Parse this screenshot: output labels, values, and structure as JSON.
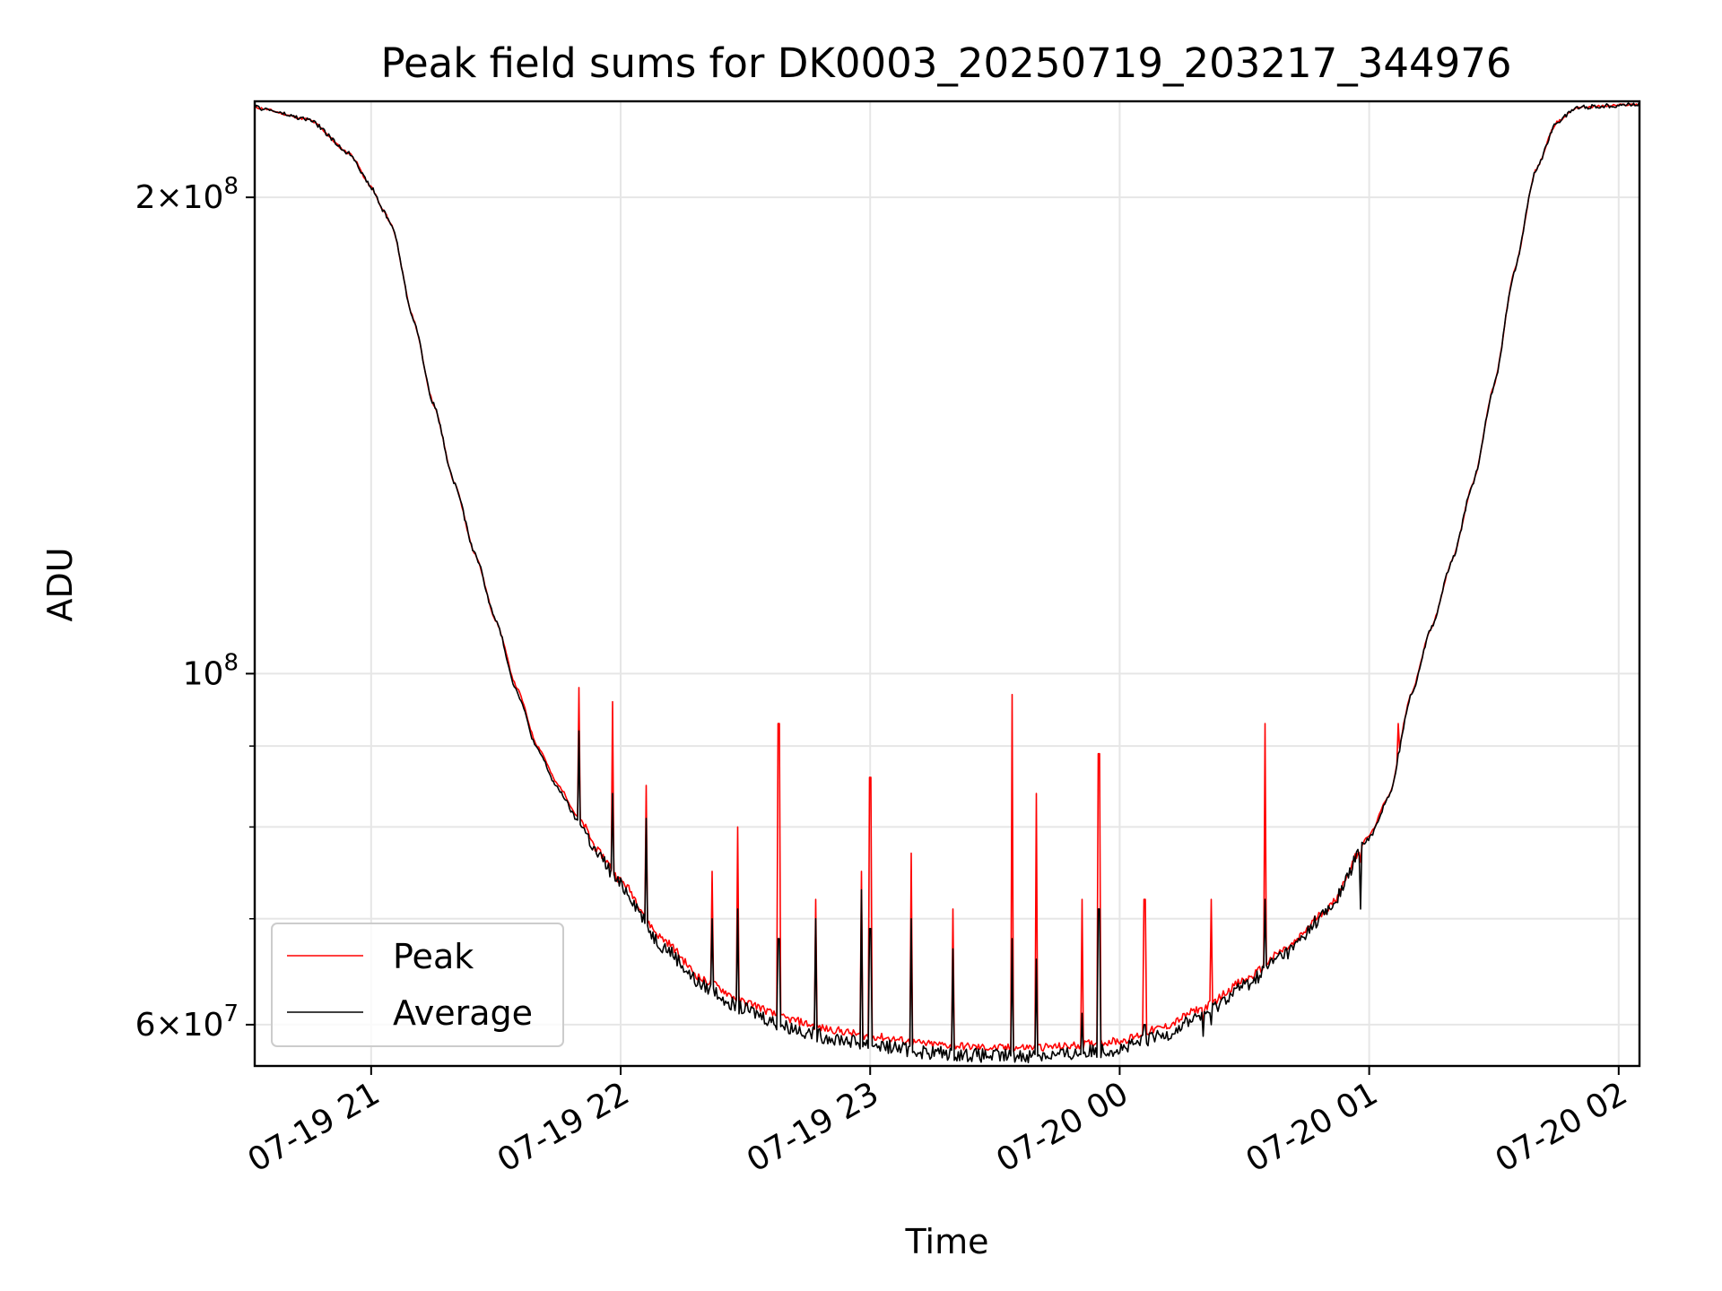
{
  "chart_data": {
    "type": "line",
    "title": "Peak field sums for DK0003_20250719_203217_344976",
    "xlabel": "Time",
    "ylabel": "ADU",
    "yscale": "log",
    "xlim": [
      "2025-07-19T20:32",
      "2025-07-20T02:05"
    ],
    "ylim": [
      56500000,
      230000000
    ],
    "grid": true,
    "legend_position": "lower-left",
    "x_ticks": [
      "07-19 21",
      "07-19 22",
      "07-19 23",
      "07-20 00",
      "07-20 01",
      "07-20 02"
    ],
    "y_tick_labels": [
      {
        "value": 60000000,
        "label": "6 × 10^7"
      },
      {
        "value": 100000000,
        "label": "10^8"
      },
      {
        "value": 200000000,
        "label": "2 × 10^8"
      }
    ],
    "series": [
      {
        "name": "Peak",
        "color": "#ff0000",
        "x": [
          "2025-07-19T20:32",
          "2025-07-19T20:45",
          "2025-07-19T20:55",
          "2025-07-19T21:00",
          "2025-07-19T21:03",
          "2025-07-19T21:05",
          "2025-07-19T21:10",
          "2025-07-19T21:15",
          "2025-07-19T21:20",
          "2025-07-19T21:25",
          "2025-07-19T21:30",
          "2025-07-19T21:35",
          "2025-07-19T21:40",
          "2025-07-19T21:45",
          "2025-07-19T21:50",
          "2025-07-19T21:55",
          "2025-07-19T22:00",
          "2025-07-19T22:10",
          "2025-07-19T22:20",
          "2025-07-19T22:30",
          "2025-07-19T22:40",
          "2025-07-19T22:50",
          "2025-07-19T23:00",
          "2025-07-19T23:15",
          "2025-07-19T23:30",
          "2025-07-19T23:45",
          "2025-07-20T00:00",
          "2025-07-20T00:10",
          "2025-07-20T00:20",
          "2025-07-20T00:30",
          "2025-07-20T00:40",
          "2025-07-20T00:50",
          "2025-07-20T01:00",
          "2025-07-20T01:05",
          "2025-07-20T01:10",
          "2025-07-20T01:15",
          "2025-07-20T01:20",
          "2025-07-20T01:25",
          "2025-07-20T01:30",
          "2025-07-20T01:35",
          "2025-07-20T01:40",
          "2025-07-20T01:45",
          "2025-07-20T01:50",
          "2025-07-20T02:05"
        ],
        "y": [
          228000000,
          224000000,
          213000000,
          203000000,
          196000000,
          192000000,
          168000000,
          148000000,
          132000000,
          119000000,
          108000000,
          98000000,
          90000000,
          85000000,
          81000000,
          77000000,
          74000000,
          68000000,
          64000000,
          62000000,
          60500000,
          59600000,
          59000000,
          58300000,
          58000000,
          58100000,
          58600000,
          59700000,
          61500000,
          64000000,
          67000000,
          71000000,
          79000000,
          84000000,
          97000000,
          107000000,
          118000000,
          132000000,
          152000000,
          180000000,
          208000000,
          223000000,
          228000000,
          229000000
        ],
        "spikes": [
          {
            "x": "2025-07-19T21:50",
            "y": 98000000
          },
          {
            "x": "2025-07-19T21:58",
            "y": 96000000
          },
          {
            "x": "2025-07-19T22:06",
            "y": 85000000
          },
          {
            "x": "2025-07-19T22:22",
            "y": 75000000
          },
          {
            "x": "2025-07-19T22:28",
            "y": 80000000
          },
          {
            "x": "2025-07-19T22:38",
            "y": 93000000
          },
          {
            "x": "2025-07-19T22:47",
            "y": 72000000
          },
          {
            "x": "2025-07-19T22:58",
            "y": 75000000
          },
          {
            "x": "2025-07-19T23:00",
            "y": 86000000
          },
          {
            "x": "2025-07-19T23:10",
            "y": 77000000
          },
          {
            "x": "2025-07-19T23:20",
            "y": 71000000
          },
          {
            "x": "2025-07-19T23:34",
            "y": 97000000
          },
          {
            "x": "2025-07-19T23:40",
            "y": 84000000
          },
          {
            "x": "2025-07-19T23:51",
            "y": 72000000
          },
          {
            "x": "2025-07-19T23:55",
            "y": 89000000
          },
          {
            "x": "2025-07-20T00:06",
            "y": 72000000
          },
          {
            "x": "2025-07-20T00:20",
            "y": 60000000
          },
          {
            "x": "2025-07-20T00:22",
            "y": 72000000
          },
          {
            "x": "2025-07-20T00:35",
            "y": 93000000
          },
          {
            "x": "2025-07-20T00:58",
            "y": 76000000
          },
          {
            "x": "2025-07-20T01:07",
            "y": 93000000
          }
        ]
      },
      {
        "name": "Average",
        "color": "#000000",
        "x": [
          "2025-07-19T20:32",
          "2025-07-19T20:45",
          "2025-07-19T20:55",
          "2025-07-19T21:00",
          "2025-07-19T21:03",
          "2025-07-19T21:05",
          "2025-07-19T21:10",
          "2025-07-19T21:15",
          "2025-07-19T21:20",
          "2025-07-19T21:25",
          "2025-07-19T21:30",
          "2025-07-19T21:35",
          "2025-07-19T21:40",
          "2025-07-19T21:45",
          "2025-07-19T21:50",
          "2025-07-19T21:55",
          "2025-07-19T22:00",
          "2025-07-19T22:10",
          "2025-07-19T22:20",
          "2025-07-19T22:30",
          "2025-07-19T22:40",
          "2025-07-19T22:50",
          "2025-07-19T23:00",
          "2025-07-19T23:15",
          "2025-07-19T23:30",
          "2025-07-19T23:45",
          "2025-07-20T00:00",
          "2025-07-20T00:10",
          "2025-07-20T00:20",
          "2025-07-20T00:30",
          "2025-07-20T00:40",
          "2025-07-20T00:50",
          "2025-07-20T01:00",
          "2025-07-20T01:05",
          "2025-07-20T01:10",
          "2025-07-20T01:15",
          "2025-07-20T01:20",
          "2025-07-20T01:25",
          "2025-07-20T01:30",
          "2025-07-20T01:35",
          "2025-07-20T01:40",
          "2025-07-20T01:45",
          "2025-07-20T01:50",
          "2025-07-20T02:05"
        ],
        "y": [
          228000000,
          224000000,
          213000000,
          203000000,
          196000000,
          192000000,
          168000000,
          148000000,
          132000000,
          119000000,
          108000000,
          97500000,
          89500000,
          84500000,
          80500000,
          76500000,
          73500000,
          67300000,
          63400000,
          61300000,
          59800000,
          58900000,
          58300000,
          57600000,
          57300000,
          57400000,
          57900000,
          59000000,
          60900000,
          63500000,
          66600000,
          70700000,
          78700000,
          83800000,
          96800000,
          107000000,
          118000000,
          132000000,
          152000000,
          180000000,
          208000000,
          223000000,
          228000000,
          229000000
        ],
        "spikes": [
          {
            "x": "2025-07-19T21:50",
            "y": 92000000
          },
          {
            "x": "2025-07-19T21:58",
            "y": 84000000
          },
          {
            "x": "2025-07-19T22:06",
            "y": 81000000
          },
          {
            "x": "2025-07-19T22:22",
            "y": 70000000
          },
          {
            "x": "2025-07-19T22:28",
            "y": 71000000
          },
          {
            "x": "2025-07-19T22:38",
            "y": 68000000
          },
          {
            "x": "2025-07-19T22:47",
            "y": 70000000
          },
          {
            "x": "2025-07-19T22:58",
            "y": 73000000
          },
          {
            "x": "2025-07-19T23:00",
            "y": 69000000
          },
          {
            "x": "2025-07-19T23:10",
            "y": 70000000
          },
          {
            "x": "2025-07-19T23:20",
            "y": 67000000
          },
          {
            "x": "2025-07-19T23:34",
            "y": 68000000
          },
          {
            "x": "2025-07-19T23:40",
            "y": 66000000
          },
          {
            "x": "2025-07-19T23:51",
            "y": 61000000
          },
          {
            "x": "2025-07-19T23:55",
            "y": 71000000
          },
          {
            "x": "2025-07-20T00:06",
            "y": 60000000
          },
          {
            "x": "2025-07-20T00:20",
            "y": 59000000
          },
          {
            "x": "2025-07-20T00:22",
            "y": 60000000
          },
          {
            "x": "2025-07-20T00:35",
            "y": 72000000
          },
          {
            "x": "2025-07-20T00:58",
            "y": 71000000
          },
          {
            "x": "2025-07-20T01:07",
            "y": 89000000
          }
        ]
      }
    ]
  }
}
